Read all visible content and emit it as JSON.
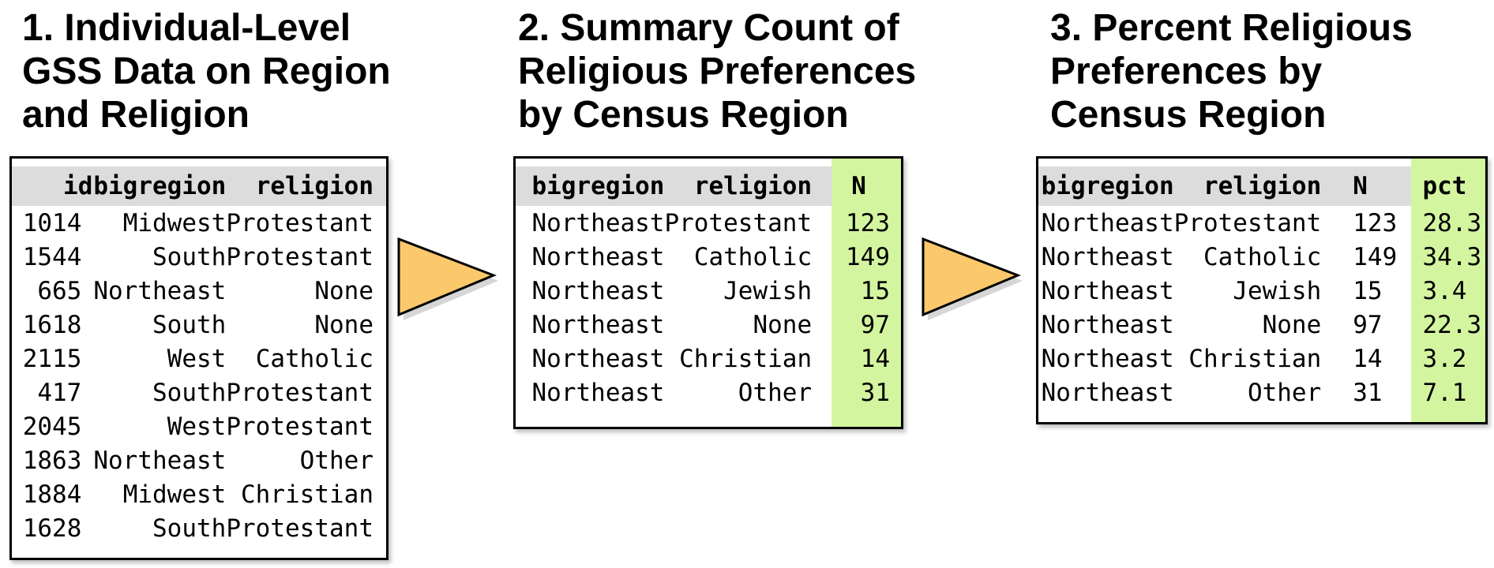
{
  "panel1": {
    "title_lines": [
      "1. Individual-Level",
      "GSS Data on Region",
      "and Religion"
    ],
    "columns": [
      "id",
      "bigregion",
      "religion"
    ],
    "rows": [
      [
        "1014",
        "Midwest",
        "Protestant"
      ],
      [
        "1544",
        "South",
        "Protestant"
      ],
      [
        "665",
        "Northeast",
        "None"
      ],
      [
        "1618",
        "South",
        "None"
      ],
      [
        "2115",
        "West",
        "Catholic"
      ],
      [
        "417",
        "South",
        "Protestant"
      ],
      [
        "2045",
        "West",
        "Protestant"
      ],
      [
        "1863",
        "Northeast",
        "Other"
      ],
      [
        "1884",
        "Midwest",
        "Christian"
      ],
      [
        "1628",
        "South",
        "Protestant"
      ]
    ]
  },
  "panel2": {
    "title_lines": [
      "2. Summary Count of",
      "Religious Preferences",
      "by Census Region"
    ],
    "columns": [
      "bigregion",
      "religion",
      "N"
    ],
    "rows": [
      [
        "Northeast",
        "Protestant",
        "123"
      ],
      [
        "Northeast",
        "Catholic",
        "149"
      ],
      [
        "Northeast",
        "Jewish",
        "15"
      ],
      [
        "Northeast",
        "None",
        "97"
      ],
      [
        "Northeast",
        "Christian",
        "14"
      ],
      [
        "Northeast",
        "Other",
        "31"
      ]
    ]
  },
  "panel3": {
    "title_lines": [
      "3. Percent Religious",
      "Preferences by",
      "Census Region"
    ],
    "columns": [
      "bigregion",
      "religion",
      "N",
      "pct"
    ],
    "rows": [
      [
        "Northeast",
        "Protestant",
        "123",
        "28.3"
      ],
      [
        "Northeast",
        "Catholic",
        "149",
        "34.3"
      ],
      [
        "Northeast",
        "Jewish",
        "15",
        "3.4"
      ],
      [
        "Northeast",
        "None",
        "97",
        "22.3"
      ],
      [
        "Northeast",
        "Christian",
        "14",
        "3.2"
      ],
      [
        "Northeast",
        "Other",
        "31",
        "7.1"
      ]
    ]
  },
  "colors": {
    "header_gray": "#dcdcdc",
    "highlight_green": "#d4f5a0",
    "arrow_fill": "#fbc96b",
    "border": "#000000"
  }
}
